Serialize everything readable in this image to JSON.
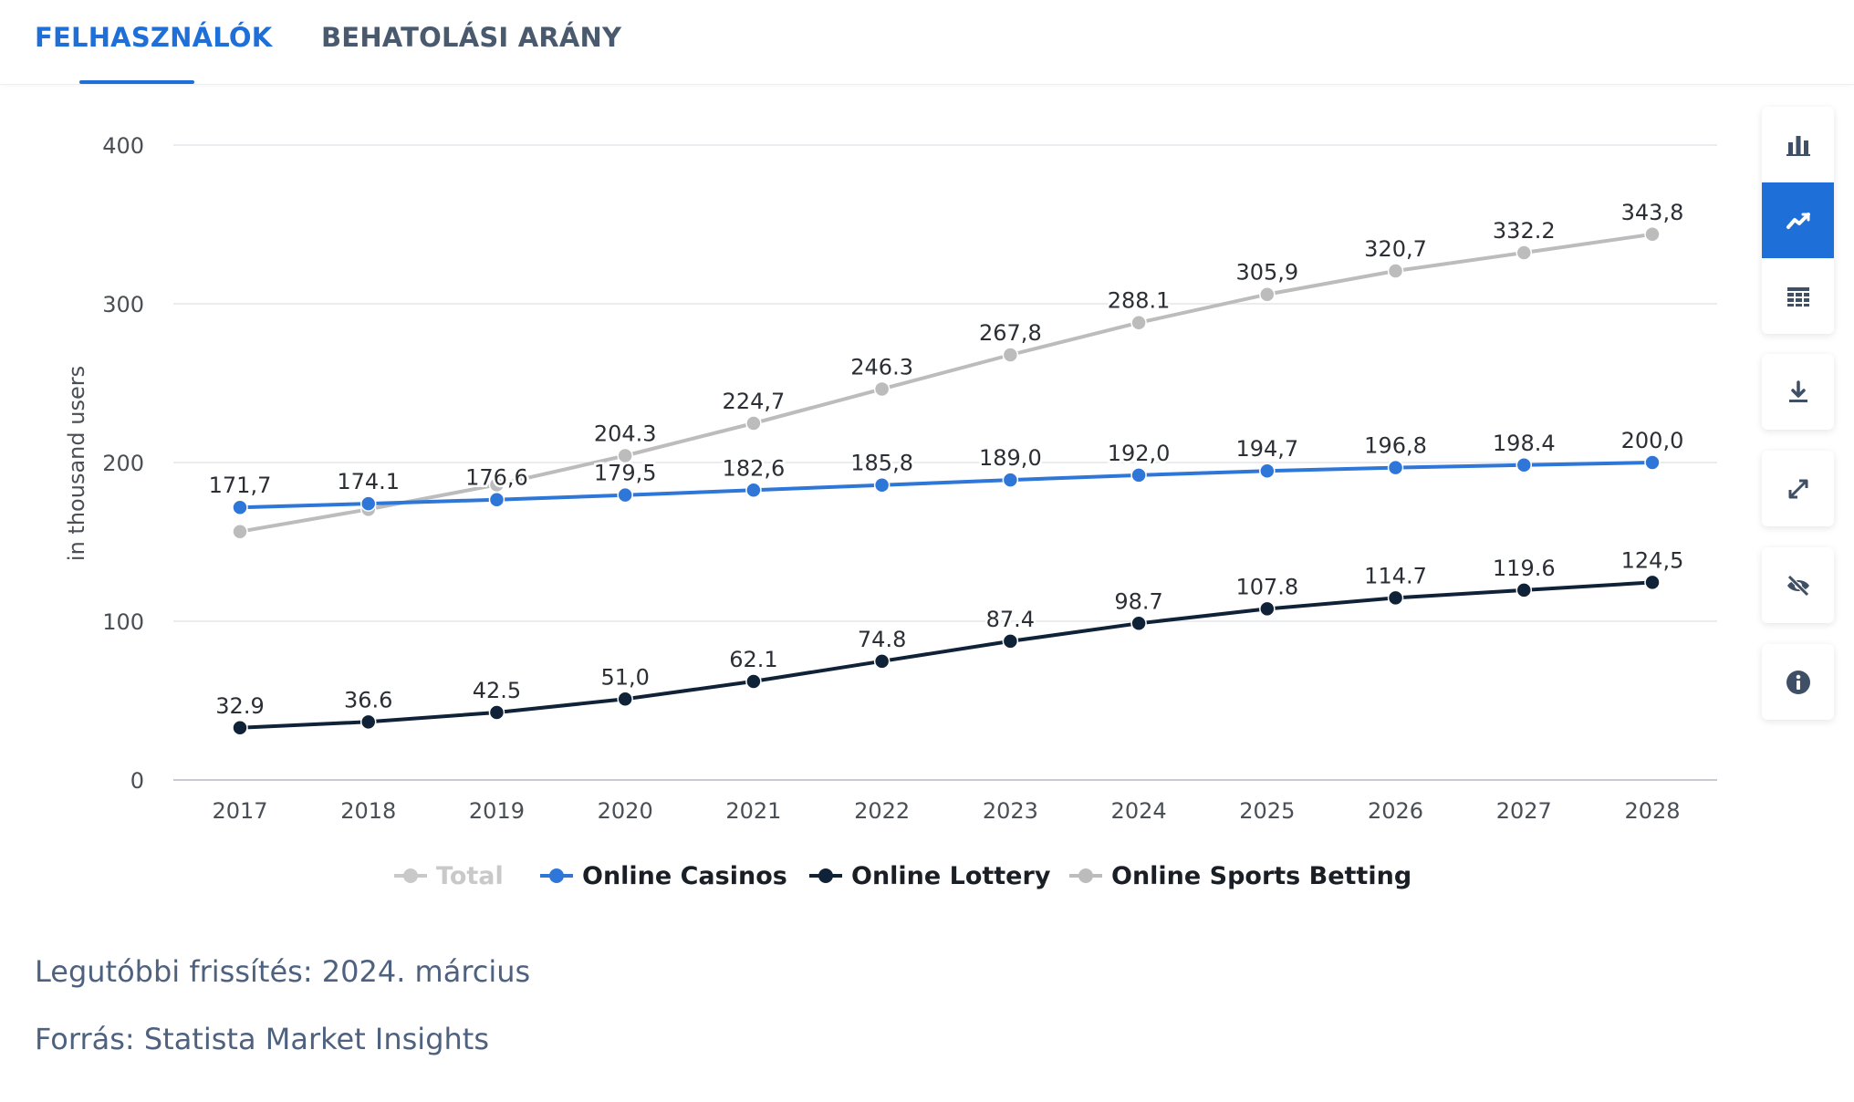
{
  "tabs": [
    {
      "label": "FELHASZNÁLÓK",
      "active": true
    },
    {
      "label": "BEHATOLÁSI ARÁNY",
      "active": false
    }
  ],
  "side_panel": {
    "buttons": [
      "bar-chart-icon",
      "line-chart-icon",
      "table-icon",
      "download-icon",
      "fullscreen-icon",
      "hide-icon",
      "info-icon"
    ],
    "active": "line-chart-icon"
  },
  "footer": {
    "updated": "Legutóbbi frissítés: 2024. március",
    "source": "Forrás: Statista Market Insights"
  },
  "colors": {
    "accent": "#1f6fd8",
    "casinos": "#2f76d9",
    "lottery": "#0f2238",
    "sports": "#bcbcbc",
    "total_disabled": "#c9c9c9"
  },
  "chart_data": {
    "type": "line",
    "ylabel": "in thousand users",
    "ylim": [
      0,
      400
    ],
    "yticks": [
      0,
      100,
      200,
      300,
      400
    ],
    "categories": [
      "2017",
      "2018",
      "2019",
      "2020",
      "2021",
      "2022",
      "2023",
      "2024",
      "2025",
      "2026",
      "2027",
      "2028"
    ],
    "grid": true,
    "legend_position": "bottom",
    "legend": [
      {
        "name": "Total",
        "disabled": true
      },
      {
        "name": "Online Casinos",
        "disabled": false
      },
      {
        "name": "Online Lottery",
        "disabled": false
      },
      {
        "name": "Online Sports Betting",
        "disabled": false
      }
    ],
    "series": [
      {
        "name": "Online Sports Betting",
        "values": [
          156.5,
          170.5,
          186,
          204.3,
          224.7,
          246.3,
          267.8,
          288.1,
          305.9,
          320.7,
          332.2,
          343.8
        ],
        "labels": [
          "",
          "",
          "",
          "204.3",
          "224,7",
          "246.3",
          "267,8",
          "288.1",
          "305,9",
          "320,7",
          "332.2",
          "343,8"
        ]
      },
      {
        "name": "Online Casinos",
        "values": [
          171.7,
          174.1,
          176.6,
          179.5,
          182.6,
          185.8,
          189.0,
          192.0,
          194.7,
          196.8,
          198.4,
          200.0
        ],
        "labels": [
          "171,7",
          "174.1",
          "176,6",
          "179,5",
          "182,6",
          "185,8",
          "189,0",
          "192,0",
          "194,7",
          "196,8",
          "198.4",
          "200,0"
        ]
      },
      {
        "name": "Online Lottery",
        "values": [
          32.9,
          36.6,
          42.5,
          51.0,
          62.1,
          74.8,
          87.4,
          98.7,
          107.8,
          114.7,
          119.6,
          124.5
        ],
        "labels": [
          "32.9",
          "36.6",
          "42.5",
          "51,0",
          "62.1",
          "74.8",
          "87.4",
          "98.7",
          "107.8",
          "114.7",
          "119.6",
          "124,5"
        ]
      }
    ]
  }
}
